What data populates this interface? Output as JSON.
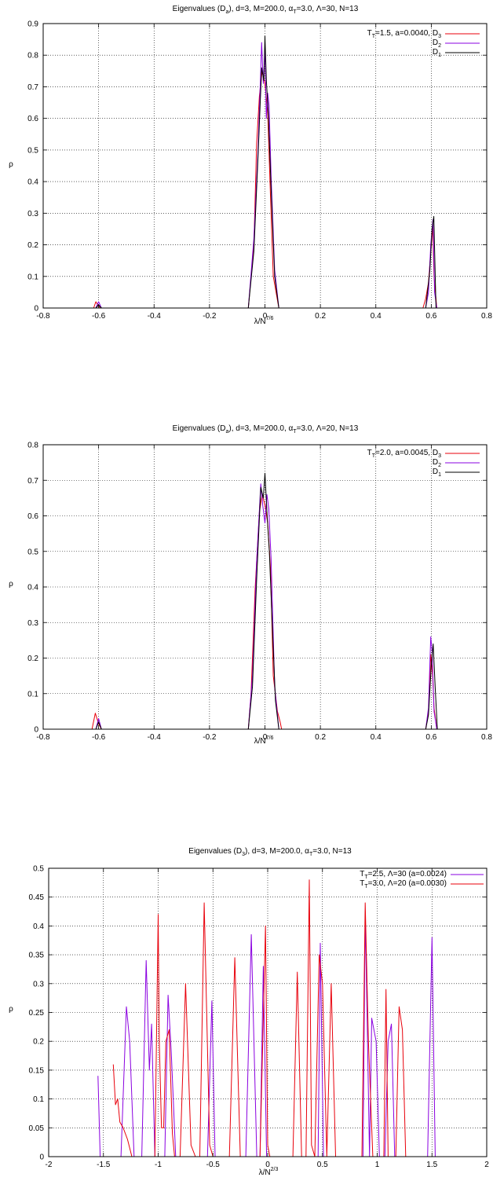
{
  "chart_data": [
    {
      "type": "line",
      "title": "Eigenvalues (D_a), d=3, M=200.0,  α_T=3.0, Λ=30, N=13",
      "xlabel": "λ/N^7/6",
      "ylabel": "ρ",
      "xlim": [
        -0.8,
        0.8
      ],
      "ylim": [
        0,
        0.9
      ],
      "xticks": [
        -0.8,
        -0.6,
        -0.4,
        -0.2,
        0,
        0.2,
        0.4,
        0.6,
        0.8
      ],
      "yticks": [
        0,
        0.1,
        0.2,
        0.3,
        0.4,
        0.5,
        0.6,
        0.7,
        0.8,
        0.9
      ],
      "grid": true,
      "legend_position": "top-right",
      "legend_label": "T_T=1.5, a=0.0040, D_3",
      "colors": {
        "D3": "#e8000b",
        "D2": "#8a00e0",
        "D1": "#000000"
      },
      "series": [
        {
          "name": "D_3",
          "x": [
            -0.8,
            -0.618,
            -0.61,
            -0.603,
            -0.595,
            -0.58,
            -0.06,
            -0.04,
            -0.03,
            -0.02,
            -0.01,
            0.0,
            0.01,
            0.02,
            0.03,
            0.05,
            0.57,
            0.58,
            0.59,
            0.6,
            0.605,
            0.61,
            0.62,
            0.8
          ],
          "y": [
            0,
            0,
            0.02,
            0.01,
            0.0,
            0,
            0,
            0.2,
            0.52,
            0.67,
            0.75,
            0.71,
            0.62,
            0.35,
            0.1,
            0,
            0,
            0.03,
            0.08,
            0.2,
            0.26,
            0.1,
            0,
            0
          ]
        },
        {
          "name": "D_2",
          "x": [
            -0.8,
            -0.61,
            -0.6,
            -0.59,
            -0.06,
            -0.04,
            -0.025,
            -0.012,
            -0.006,
            0.0,
            0.005,
            0.01,
            0.015,
            0.022,
            0.035,
            0.05,
            0.58,
            0.59,
            0.598,
            0.606,
            0.612,
            0.62,
            0.8
          ],
          "y": [
            0,
            0,
            0.02,
            0,
            0,
            0.22,
            0.5,
            0.84,
            0.71,
            0.82,
            0.6,
            0.68,
            0.64,
            0.42,
            0.12,
            0,
            0,
            0.05,
            0.2,
            0.28,
            0.05,
            0,
            0
          ]
        },
        {
          "name": "D_1",
          "x": [
            -0.8,
            -0.61,
            -0.6,
            -0.59,
            -0.06,
            -0.04,
            -0.025,
            -0.012,
            -0.004,
            0.0,
            0.005,
            0.012,
            0.022,
            0.035,
            0.05,
            0.58,
            0.595,
            0.603,
            0.609,
            0.617,
            0.8
          ],
          "y": [
            0,
            0,
            0.01,
            0,
            0,
            0.18,
            0.48,
            0.76,
            0.72,
            0.86,
            0.72,
            0.62,
            0.38,
            0.1,
            0,
            0,
            0.12,
            0.25,
            0.29,
            0,
            0
          ]
        }
      ]
    },
    {
      "type": "line",
      "title": "Eigenvalues (D_a), d=3, M=200.0,  α_T=3.0, Λ=20, N=13",
      "xlabel": "λ/N^7/6",
      "ylabel": "ρ",
      "xlim": [
        -0.8,
        0.8
      ],
      "ylim": [
        0,
        0.8
      ],
      "xticks": [
        -0.8,
        -0.6,
        -0.4,
        -0.2,
        0,
        0.2,
        0.4,
        0.6,
        0.8
      ],
      "yticks": [
        0,
        0.1,
        0.2,
        0.3,
        0.4,
        0.5,
        0.6,
        0.7,
        0.8
      ],
      "grid": true,
      "legend_position": "top-right",
      "legend_label": "T_T=2.0, a=0.0045, D_3",
      "colors": {
        "D3": "#e8000b",
        "D2": "#8a00e0",
        "D1": "#000000"
      },
      "series": [
        {
          "name": "D_3",
          "x": [
            -0.8,
            -0.624,
            -0.612,
            -0.6,
            -0.59,
            -0.06,
            -0.05,
            -0.035,
            -0.02,
            -0.01,
            0.0,
            0.01,
            0.02,
            0.03,
            0.045,
            0.055,
            0.06,
            0.58,
            0.59,
            0.598,
            0.605,
            0.61,
            0.62,
            0.8
          ],
          "y": [
            0,
            0,
            0.045,
            0.015,
            0,
            0,
            0.1,
            0.4,
            0.61,
            0.66,
            0.63,
            0.58,
            0.45,
            0.15,
            0.05,
            0.02,
            0,
            0,
            0.05,
            0.21,
            0.15,
            0.06,
            0,
            0
          ]
        },
        {
          "name": "D_2",
          "x": [
            -0.8,
            -0.61,
            -0.6,
            -0.59,
            -0.06,
            -0.045,
            -0.03,
            -0.015,
            -0.008,
            0.0,
            0.007,
            0.014,
            0.022,
            0.035,
            0.05,
            0.58,
            0.59,
            0.598,
            0.603,
            0.61,
            0.62,
            0.8
          ],
          "y": [
            0,
            0,
            0.03,
            0,
            0,
            0.15,
            0.47,
            0.69,
            0.63,
            0.58,
            0.66,
            0.62,
            0.48,
            0.12,
            0,
            0,
            0.06,
            0.26,
            0.22,
            0.05,
            0,
            0
          ]
        },
        {
          "name": "D_1",
          "x": [
            -0.8,
            -0.61,
            -0.6,
            -0.59,
            -0.06,
            -0.045,
            -0.03,
            -0.015,
            -0.006,
            0.0,
            0.008,
            0.016,
            0.026,
            0.038,
            0.05,
            0.58,
            0.59,
            0.6,
            0.607,
            0.614,
            0.622,
            0.8
          ],
          "y": [
            0,
            0,
            0.02,
            0,
            0,
            0.12,
            0.42,
            0.68,
            0.65,
            0.72,
            0.6,
            0.5,
            0.3,
            0.08,
            0,
            0,
            0.04,
            0.18,
            0.24,
            0.12,
            0,
            0
          ]
        }
      ]
    },
    {
      "type": "line",
      "title": "Eigenvalues (D_3), d=3, M=200.0, α_T=3.0,  N=13",
      "xlabel": "λ/N^2/3",
      "ylabel": "ρ",
      "xlim": [
        -2,
        2
      ],
      "ylim": [
        0,
        0.5
      ],
      "xticks": [
        -2,
        -1.5,
        -1,
        -0.5,
        0,
        0.5,
        1,
        1.5,
        2
      ],
      "yticks": [
        0,
        0.05,
        0.1,
        0.15,
        0.2,
        0.25,
        0.3,
        0.35,
        0.4,
        0.45,
        0.5
      ],
      "grid": true,
      "legend_position": "top-right",
      "colors": {
        "purple": "#8a00e0",
        "red": "#e8000b"
      },
      "series": [
        {
          "name": "T_T=2.5, Λ=30 (a=0.0024)",
          "x": [
            -1.55,
            -1.53,
            -1.34,
            -1.29,
            -1.26,
            -1.22,
            -1.15,
            -1.11,
            -1.08,
            -1.06,
            -1.03,
            -1.01,
            -0.98,
            -0.94,
            -0.91,
            -0.88,
            -0.84,
            -0.55,
            -0.51,
            -0.48,
            -0.2,
            -0.15,
            -0.1,
            -0.07,
            -0.04,
            -0.01,
            0.42,
            0.46,
            0.48,
            0.51,
            0.82,
            0.87,
            0.89,
            0.91,
            0.93,
            0.95,
            0.99,
            1.02,
            1.07,
            1.1,
            1.13,
            1.16,
            1.46,
            1.5,
            1.53
          ],
          "y": [
            0.14,
            0,
            0,
            0.26,
            0.2,
            0,
            0,
            0.34,
            0.15,
            0.23,
            0.0,
            0.0,
            0.0,
            0.0,
            0.28,
            0.18,
            0,
            0,
            0.27,
            0,
            0,
            0.385,
            0,
            0,
            0.33,
            0,
            0,
            0.0,
            0.37,
            0,
            0,
            0.0,
            0.42,
            0.22,
            0.0,
            0.24,
            0.2,
            0,
            0,
            0.2,
            0.23,
            0,
            0,
            0.38,
            0
          ]
        },
        {
          "name": "T_T=3.0, Λ=20 (a=0.0030)",
          "x": [
            -1.41,
            -1.39,
            -1.37,
            -1.35,
            -1.32,
            -1.28,
            -1.24,
            -1.03,
            -1.0,
            -0.99,
            -0.97,
            -0.95,
            -0.93,
            -0.9,
            -0.87,
            -0.85,
            -0.8,
            -0.75,
            -0.7,
            -0.66,
            -0.62,
            -0.58,
            -0.53,
            -0.5,
            -0.35,
            -0.3,
            -0.25,
            -0.07,
            -0.02,
            0.0,
            0.02,
            0.07,
            0.23,
            0.27,
            0.31,
            0.35,
            0.38,
            0.4,
            0.43,
            0.47,
            0.5,
            0.54,
            0.58,
            0.62,
            0.86,
            0.89,
            0.92,
            0.96,
            1.06,
            1.08,
            1.1,
            1.17,
            1.2,
            1.23,
            1.26
          ],
          "y": [
            0.16,
            0.09,
            0.1,
            0.06,
            0.05,
            0.03,
            0,
            0,
            0.42,
            0.2,
            0.05,
            0.05,
            0.2,
            0.22,
            0.04,
            0,
            0,
            0.3,
            0.02,
            0,
            0,
            0.44,
            0.02,
            0,
            0,
            0.345,
            0,
            0,
            0.4,
            0.02,
            0,
            0,
            0,
            0.32,
            0,
            0,
            0.48,
            0.02,
            0.0,
            0.35,
            0.3,
            0,
            0.3,
            0,
            0,
            0.44,
            0.2,
            0,
            0,
            0.29,
            0,
            0,
            0.26,
            0.22,
            0
          ]
        }
      ]
    }
  ]
}
